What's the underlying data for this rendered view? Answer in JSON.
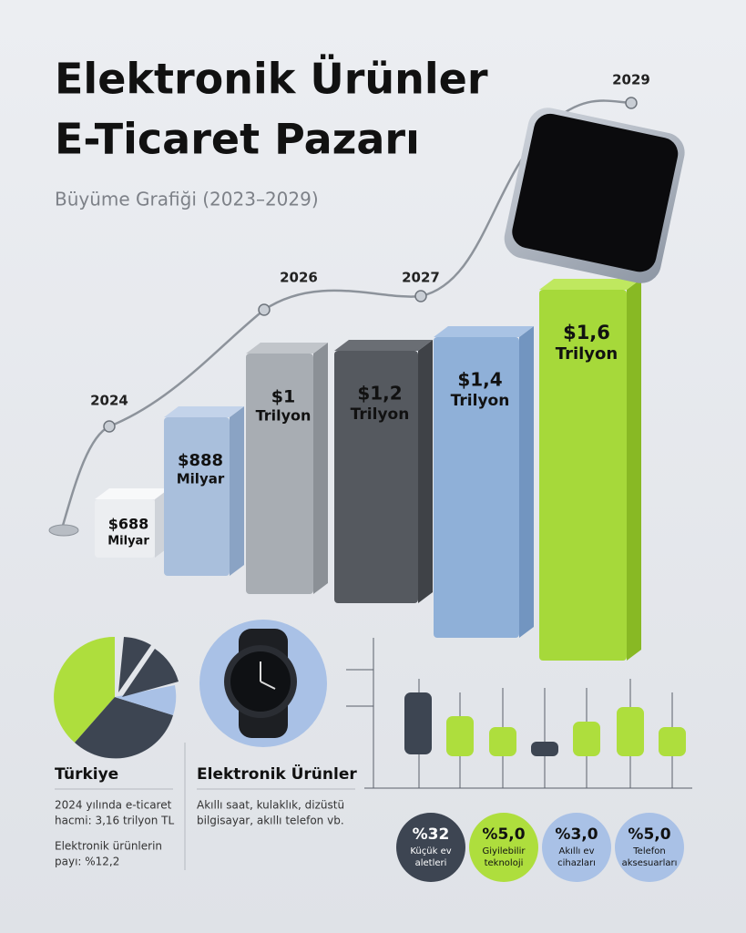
{
  "header": {
    "title_lines": [
      "Elektronik Ürünler",
      "E-Ticaret Pazarı"
    ],
    "subtitle": "Büyüme Grafiği (2023–2029)"
  },
  "timeline": {
    "years": [
      "2024",
      "2026",
      "2027",
      "2029"
    ]
  },
  "bars": [
    {
      "amount": "$688",
      "unit": "Milyar"
    },
    {
      "amount": "$888",
      "unit": "Milyar"
    },
    {
      "amount": "$1",
      "unit": "Trilyon"
    },
    {
      "amount": "$1,2",
      "unit": "Trilyon"
    },
    {
      "amount": "$1,4",
      "unit": "Trilyon"
    },
    {
      "amount": "$1,6",
      "unit": "Trilyon"
    }
  ],
  "turkey": {
    "title": "Türkiye",
    "volume_lines": [
      "2024 yılında e-ticaret",
      "hacmi: 3,16 trilyon TL"
    ],
    "share_lines": [
      "Elektronik ürünlerin",
      "payı: %12,2"
    ]
  },
  "electronics": {
    "title": "Elektronik Ürünler",
    "text_lines": [
      "Akıllı saat, kulaklık, dizüstü",
      "bilgisayar, akıllı telefon vb."
    ]
  },
  "badges": [
    {
      "value": "%32",
      "label_lines": [
        "Küçük ev",
        "aletleri"
      ]
    },
    {
      "value": "%5,0",
      "label_lines": [
        "Giyilebilir",
        "teknoloji"
      ]
    },
    {
      "value": "%3,0",
      "label_lines": [
        "Akıllı ev",
        "cihazları"
      ]
    },
    {
      "value": "%5,0",
      "label_lines": [
        "Telefon",
        "aksesuarları"
      ]
    }
  ]
}
